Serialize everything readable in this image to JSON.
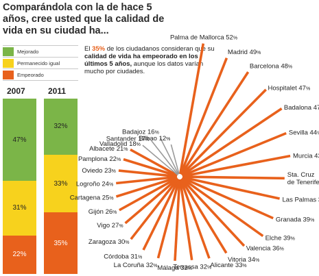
{
  "title": "Comparándola con la de hace 5 años, cree usted que la calidad de vida en su ciudad ha...",
  "legend": [
    {
      "label": "Mejorado",
      "color": "#7bb548"
    },
    {
      "label": "Permanecido igual",
      "color": "#f7d21d"
    },
    {
      "label": "Empeorado",
      "color": "#e8611c"
    }
  ],
  "annotation": {
    "pre": "El ",
    "highlight": "35%",
    "mid": " de los ciudadanos consideran que su ",
    "bold": "calidad de vida ha empeorado en los últimos 5 años,",
    "post": " aunque los datos varían mucho por ciudades."
  },
  "chart_data": [
    {
      "type": "bar",
      "stacked": true,
      "categories": [
        "2007",
        "2011"
      ],
      "series": [
        {
          "name": "Mejorado",
          "values": [
            47,
            32
          ],
          "color": "#7bb548"
        },
        {
          "name": "Permanecido igual",
          "values": [
            31,
            33
          ],
          "color": "#f7d21d"
        },
        {
          "name": "Empeorado",
          "values": [
            22,
            35
          ],
          "color": "#e8611c"
        }
      ],
      "ylim": [
        0,
        100
      ]
    },
    {
      "type": "bar",
      "layout": "radial",
      "series_name": "Empeorado",
      "unit": "%",
      "categories": [
        "Palma de Mallorca",
        "Madrid",
        "Barcelona",
        "Hospitalet",
        "Badalona",
        "Sevilla",
        "Murcia",
        "Sta. Cruz de Tenerife",
        "Las Palmas",
        "Granada",
        "Elche",
        "Valencia",
        "Vitoria",
        "Alicante",
        "Terrassa",
        "Málaga",
        "La Coruña",
        "Córdoba",
        "Zaragoza",
        "Vigo",
        "Gijón",
        "Cartagena",
        "Logroño",
        "Oviedo",
        "Pamplona",
        "Albacete",
        "Valladolid",
        "Santander",
        "Badajoz",
        "Bilbao"
      ],
      "values": [
        52,
        49,
        48,
        47,
        47,
        44,
        43,
        40,
        39,
        39,
        39,
        36,
        34,
        33,
        32,
        32,
        32,
        31,
        30,
        27,
        26,
        25,
        24,
        23,
        22,
        21,
        18,
        17,
        16,
        12
      ],
      "colors": {
        "bar": "#e8611c",
        "below_20": "#9a9a9a"
      }
    }
  ]
}
